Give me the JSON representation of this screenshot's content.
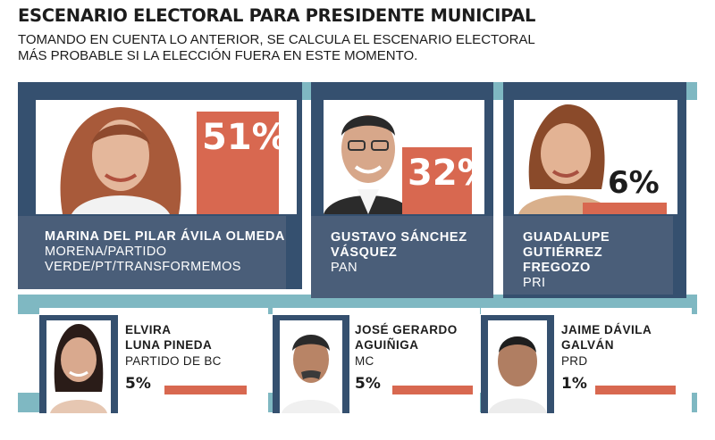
{
  "title": "ESCENARIO ELECTORAL PARA PRESIDENTE MUNICIPAL",
  "subtitle_line1": "TOMANDO EN CUENTA LO ANTERIOR, SE CALCULA EL ESCENARIO ELECTORAL",
  "subtitle_line2": "MÁS PROBABLE SI LA ELECCIÓN FUERA EN ESTE MOMENTO.",
  "colors": {
    "frame": "#35506f",
    "namebox": "#4a5e79",
    "bar": "#d86850",
    "strip": "#7fb8c2"
  },
  "chart_data": {
    "type": "bar",
    "title": "ESCENARIO ELECTORAL PARA PRESIDENTE MUNICIPAL",
    "unit": "%",
    "ylim": [
      0,
      100
    ],
    "categories": [
      "MARINA DEL PILAR ÁVILA OLMEDA",
      "GUSTAVO SÁNCHEZ VÁSQUEZ",
      "GUADALUPE GUTIÉRREZ FREGOZO",
      "ELVIRA LUNA PINEDA",
      "JOSÉ GERARDO AGUIÑIGA",
      "JAIME DÁVILA GALVÁN"
    ],
    "values": [
      51,
      32,
      6,
      5,
      5,
      1
    ]
  },
  "candidates": [
    {
      "name_l1": "MARINA DEL PILAR ÁVILA OLMEDA",
      "name_l2": "",
      "party_l1": "MORENA/PARTIDO",
      "party_l2": "VERDE/PT/TRANSFORMEMOS",
      "value": 51,
      "label": "51%"
    },
    {
      "name_l1": "GUSTAVO SÁNCHEZ",
      "name_l2": "VÁSQUEZ",
      "party_l1": "PAN",
      "party_l2": "",
      "value": 32,
      "label": "32%"
    },
    {
      "name_l1": "GUADALUPE",
      "name_l2": "GUTIÉRREZ FREGOZO",
      "party_l1": "PRI",
      "party_l2": "",
      "value": 6,
      "label": "6%"
    },
    {
      "name_l1": "ELVIRA",
      "name_l2": "LUNA PINEDA",
      "party_l1": "PARTIDO DE BC",
      "party_l2": "",
      "value": 5,
      "label": "5%"
    },
    {
      "name_l1": "JOSÉ GERARDO",
      "name_l2": "AGUIÑIGA",
      "party_l1": "MC",
      "party_l2": "",
      "value": 5,
      "label": "5%"
    },
    {
      "name_l1": "JAIME DÁVILA",
      "name_l2": "GALVÁN",
      "party_l1": "PRD",
      "party_l2": "",
      "value": 1,
      "label": "1%"
    }
  ]
}
